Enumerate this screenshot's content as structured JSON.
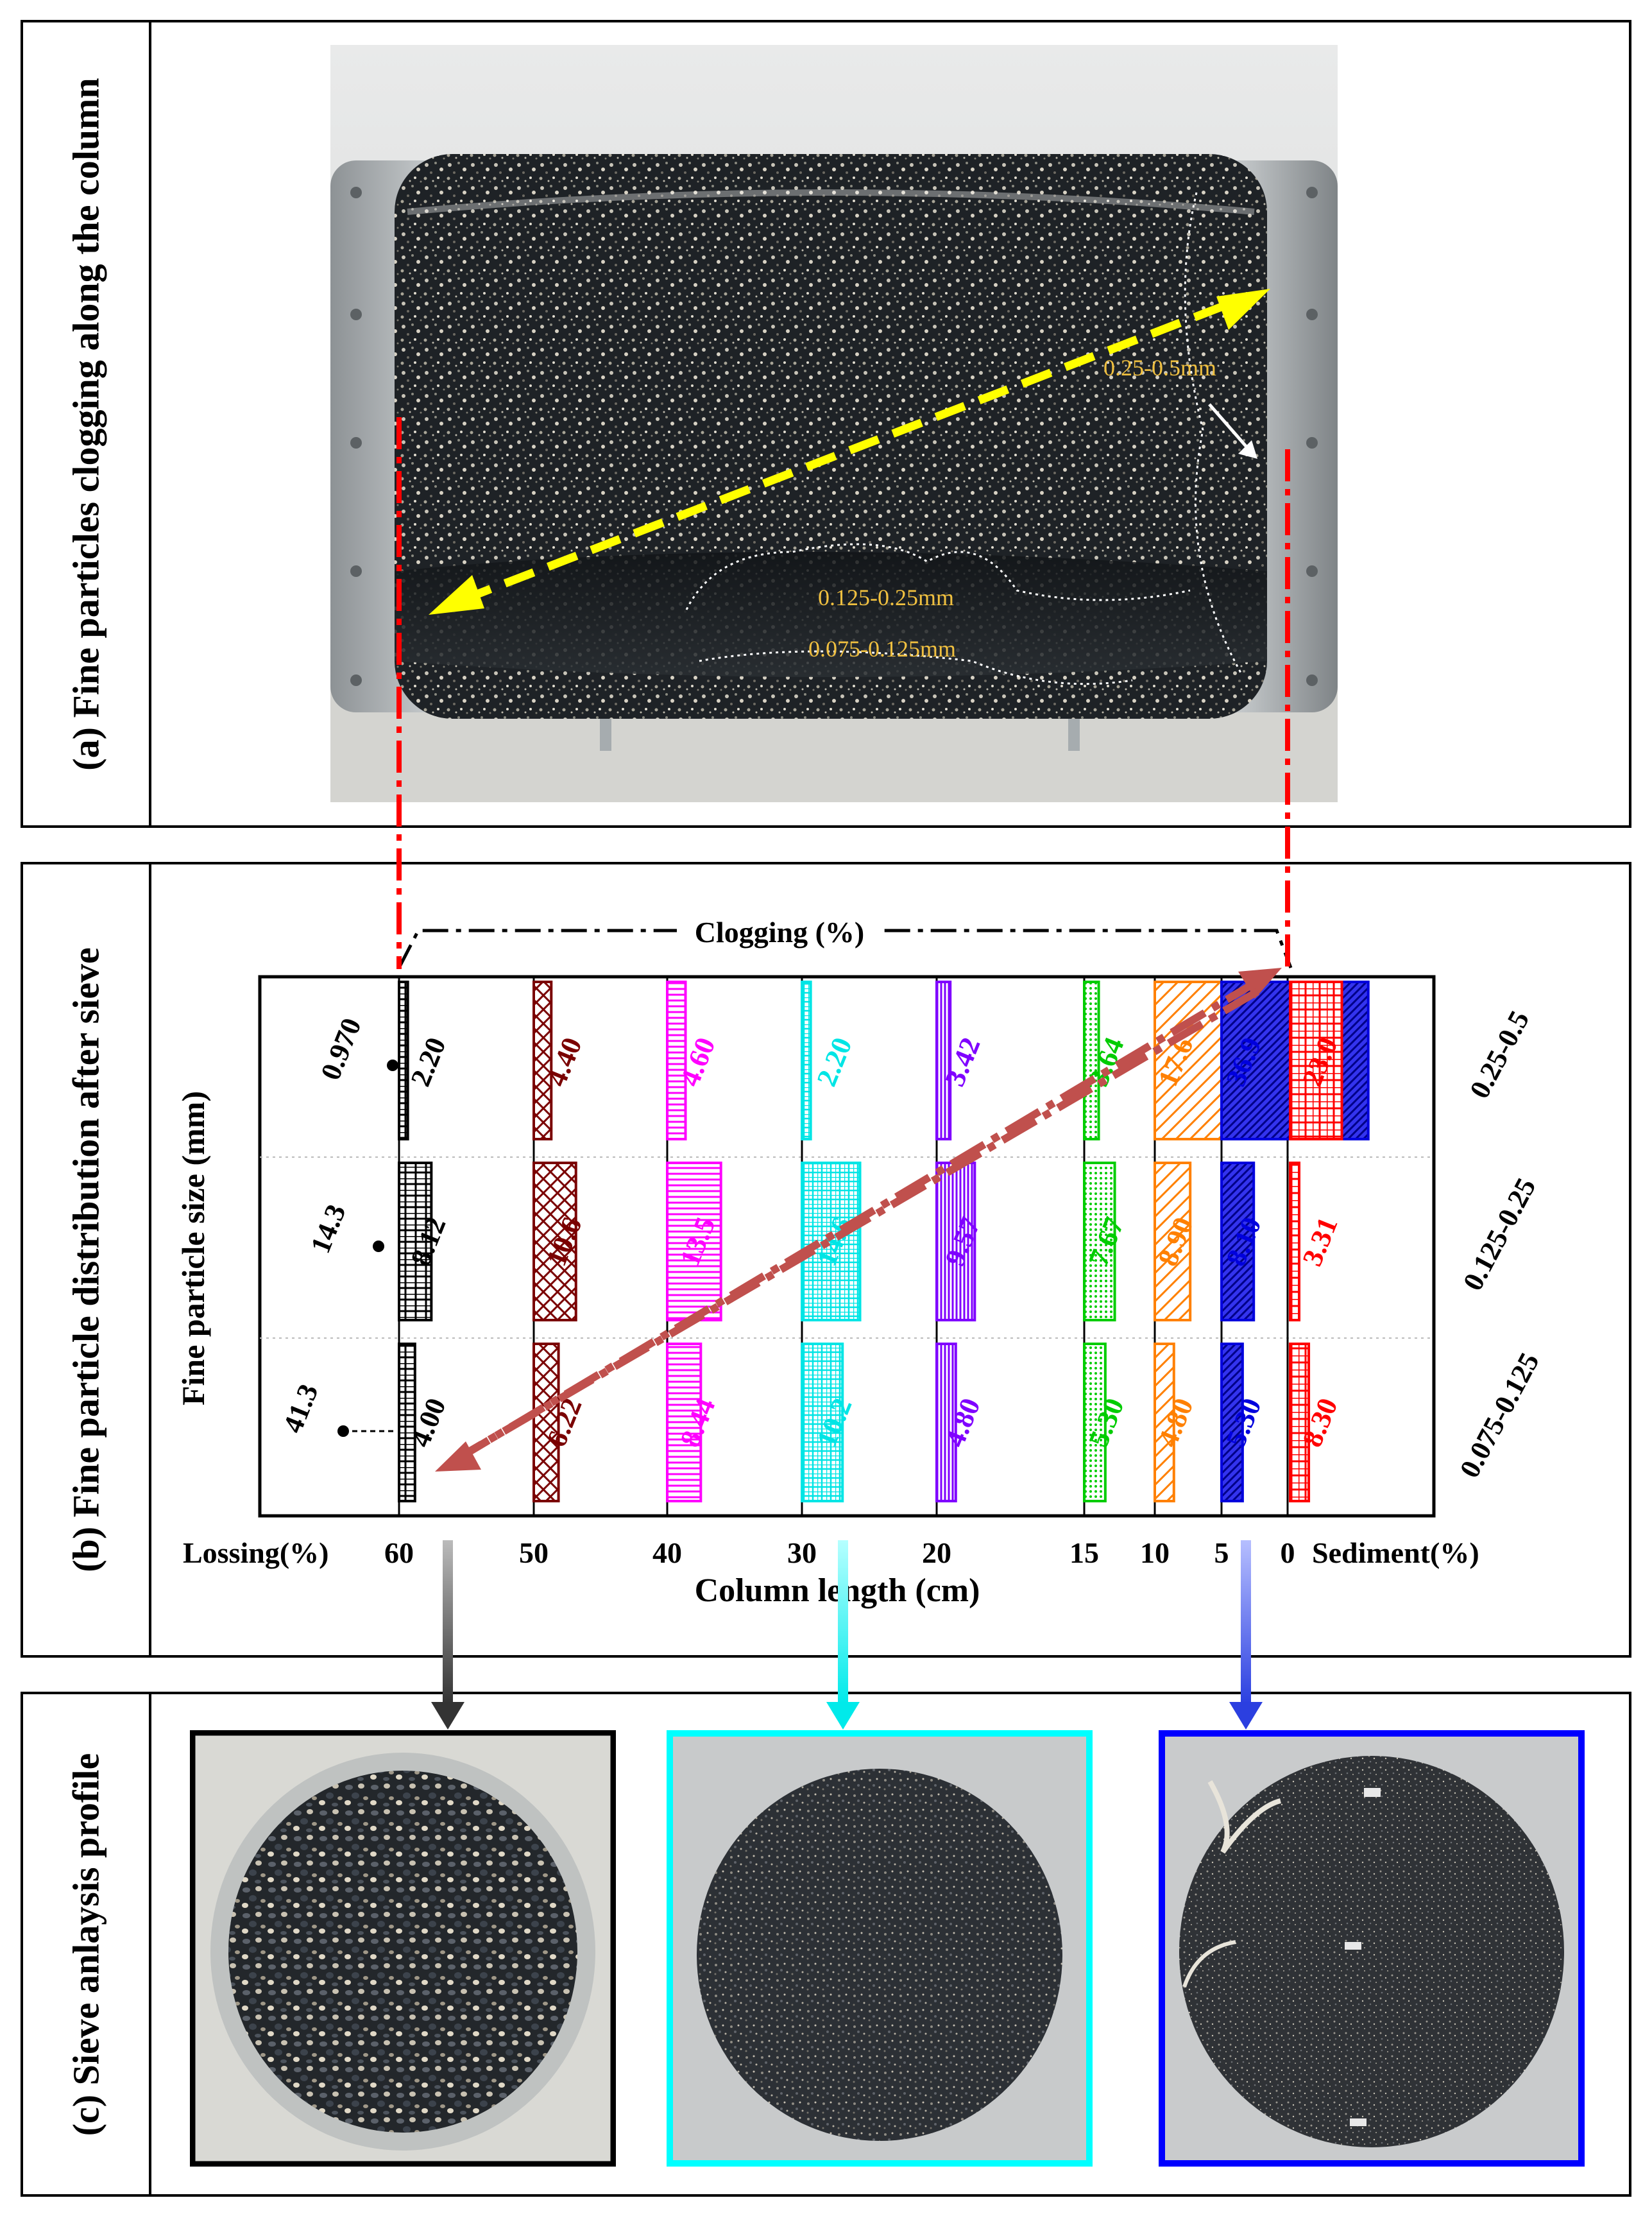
{
  "panels": {
    "a": {
      "title": "(a) Fine particles clogging along the column"
    },
    "b": {
      "title": "(b) Fine particle distribution after sieve"
    },
    "c": {
      "title": "(c) Sieve anlaysis profile"
    }
  },
  "photo_a": {
    "labels": {
      "coarse": "0.25-0.5mm",
      "mid": "0.125-0.25mm",
      "fine": "0.075-0.125mm"
    }
  },
  "chart_data": {
    "type": "bar",
    "ylabel": "Fine particle size (mm)",
    "xlabel": "Column length (cm)",
    "clogging_label": "Clogging (%)",
    "lossing_label": "Lossing(%)",
    "sediment_label": "Sediment(%)",
    "x_ticks": [
      "60",
      "50",
      "40",
      "30",
      "20",
      "15",
      "10",
      "5",
      "0"
    ],
    "size_groups": [
      "0.25-0.5",
      "0.125-0.25",
      "0.075-0.125"
    ],
    "lossing": [
      "0.970",
      "14.3",
      "41.3"
    ],
    "positions_cm": [
      60,
      50,
      40,
      30,
      20,
      15,
      10,
      5,
      0
    ],
    "clogging": [
      {
        "position": 60,
        "color": "#000000",
        "values": [
          "2.20",
          "8.12",
          "4.00"
        ]
      },
      {
        "position": 50,
        "color": "#7a0000",
        "values": [
          "4.40",
          "10.6",
          "6.22"
        ]
      },
      {
        "position": 40,
        "color": "#ff00ff",
        "values": [
          "4.60",
          "13.5",
          "8.44"
        ]
      },
      {
        "position": 30,
        "color": "#00e5e5",
        "values": [
          "2.20",
          "14.6",
          "10.2"
        ]
      },
      {
        "position": 20,
        "color": "#7f00ff",
        "values": [
          "3.42",
          "9.57",
          "4.80"
        ]
      },
      {
        "position": 15,
        "color": "#00cc00",
        "values": [
          "3.64",
          "7.67",
          "5.30"
        ]
      },
      {
        "position": 10,
        "color": "#ff8000",
        "values": [
          "17.6",
          "8.90",
          "4.80"
        ]
      },
      {
        "position": 5,
        "color": "#0000dd",
        "values": [
          "36.9",
          "8.10",
          "5.30"
        ]
      }
    ],
    "sediment": {
      "position": 0,
      "color": "#ff0000",
      "values": [
        "23.0",
        "3.31",
        "8.30"
      ]
    }
  },
  "colors": {
    "frame_c1": "#000000",
    "frame_c2": "#00ffff",
    "frame_c3": "#0000ff",
    "trend_arrow": "#c0504d",
    "red_dash": "#ff0000",
    "yellow_arrow": "#ffff00"
  }
}
